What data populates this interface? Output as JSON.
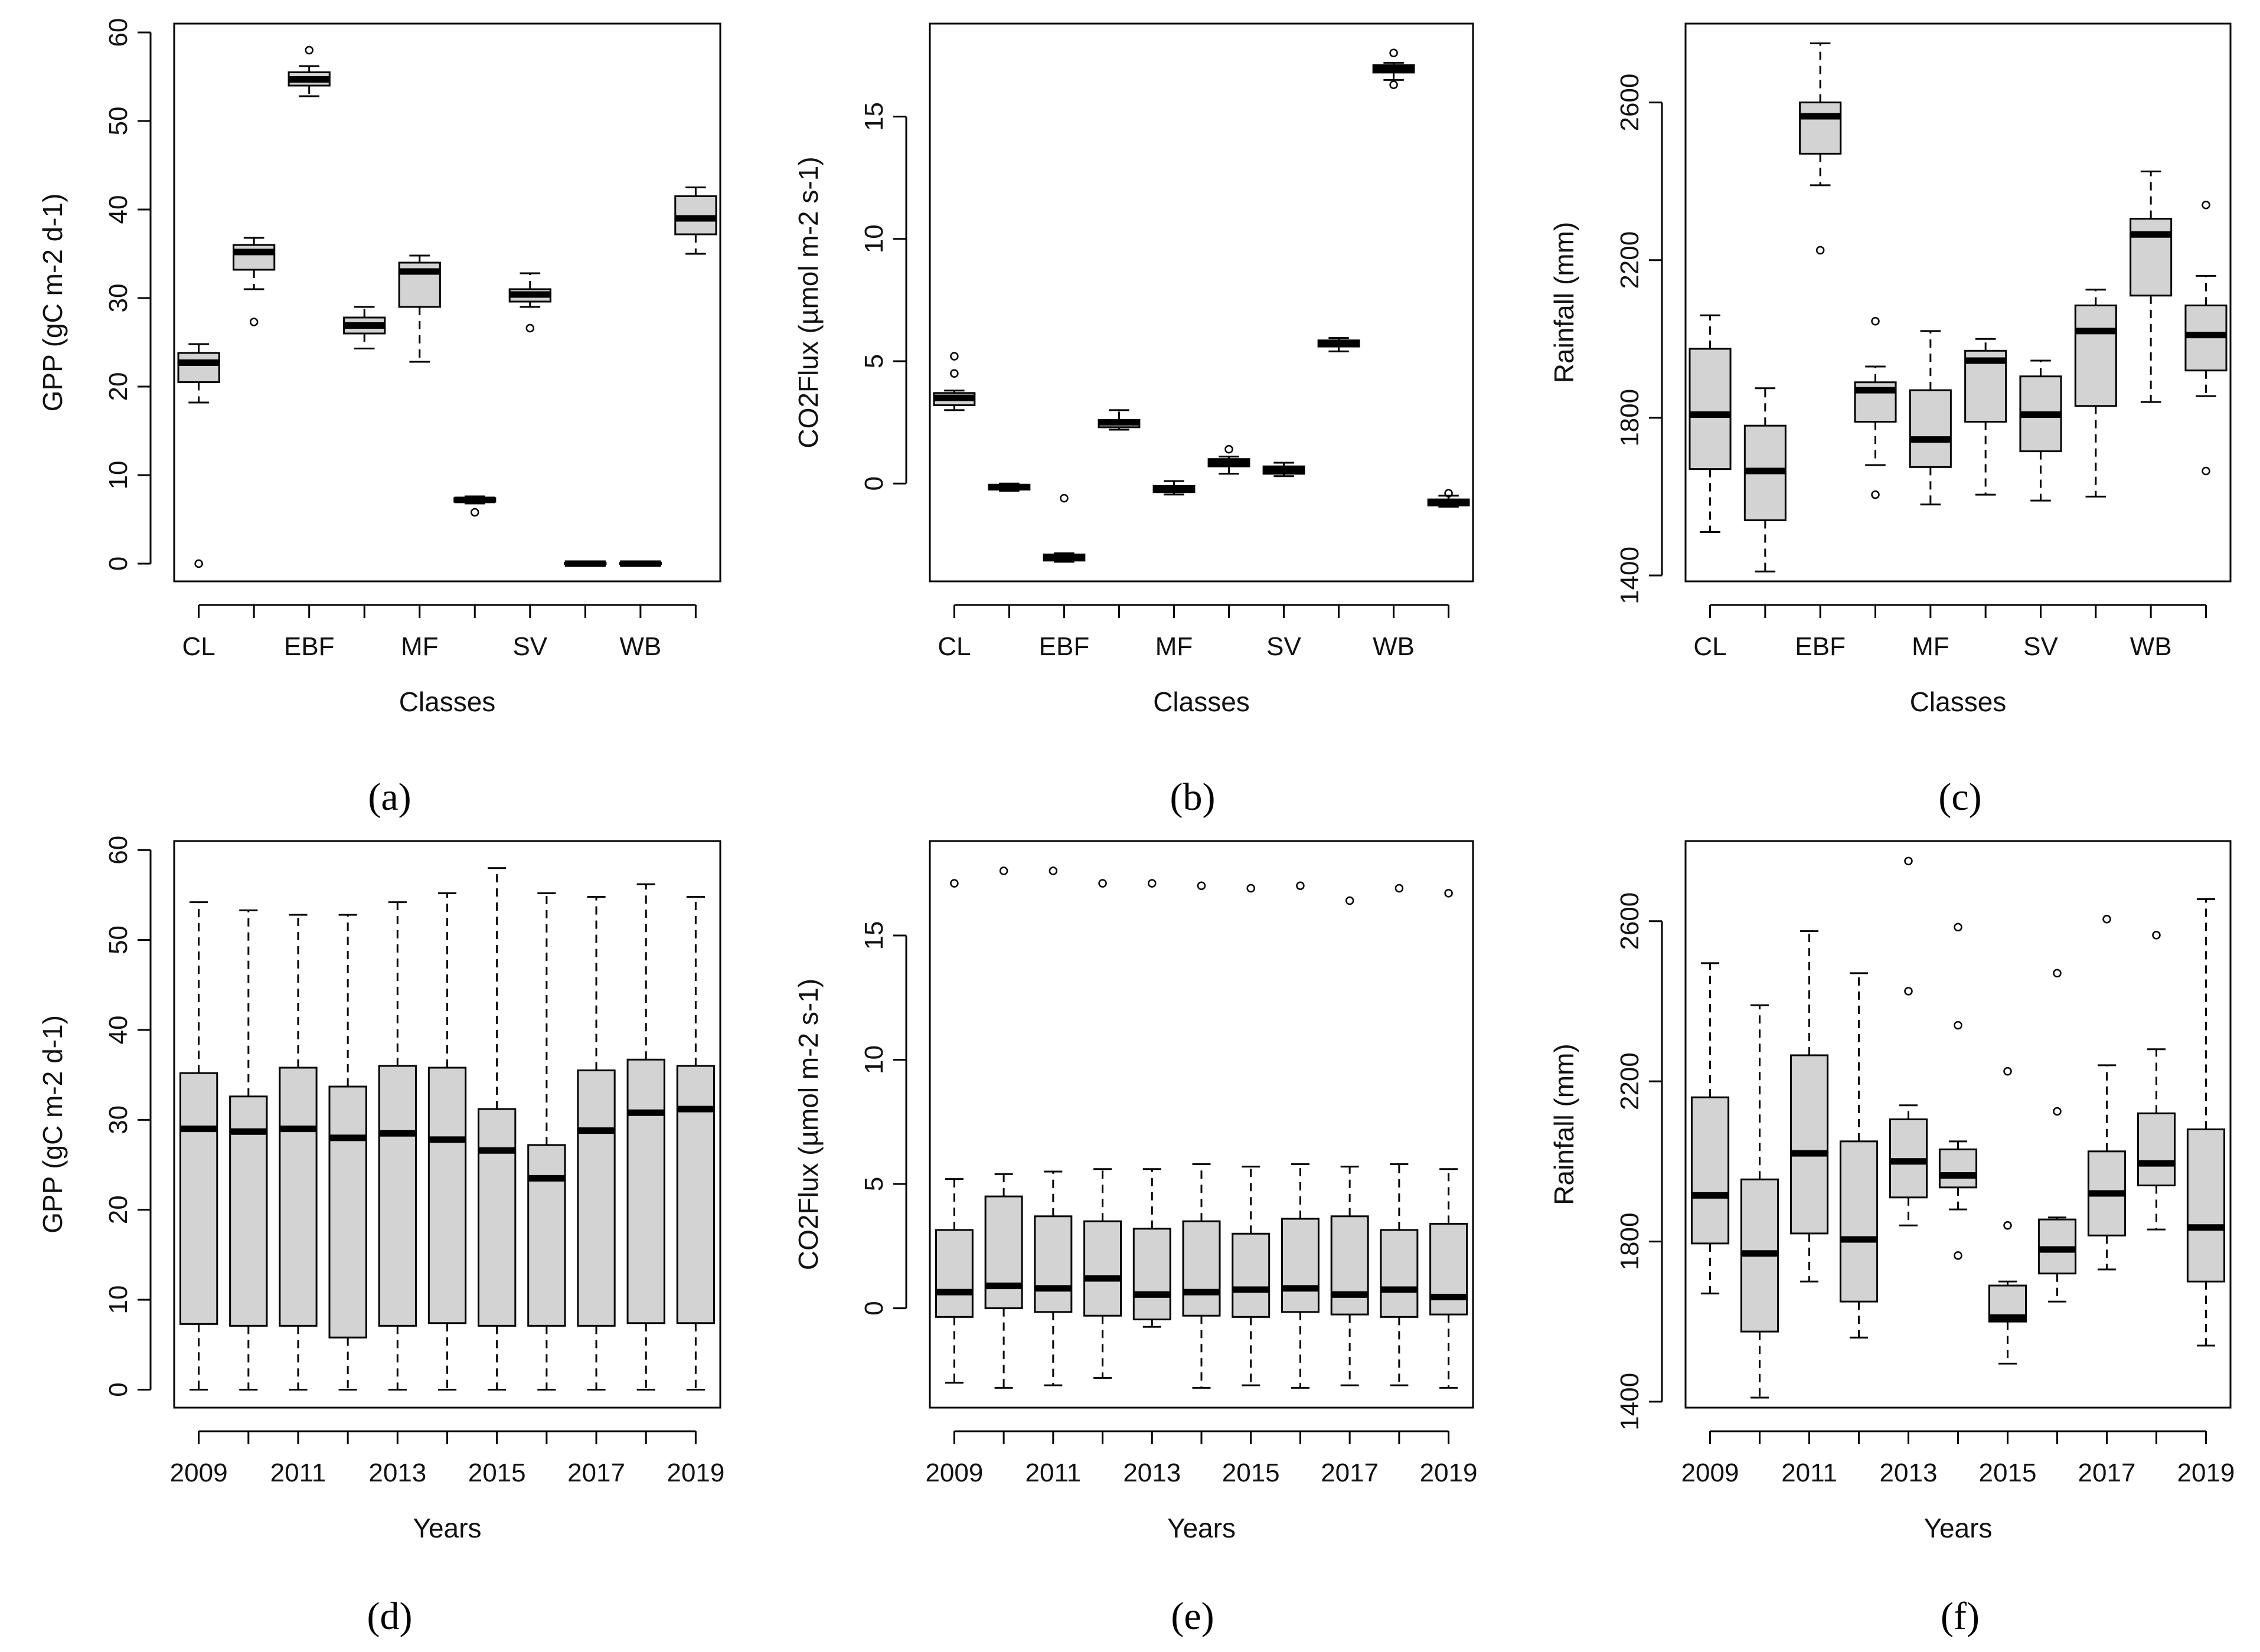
{
  "figure": {
    "panel_labels": [
      "(a)",
      "(b)",
      "(c)",
      "(d)",
      "(e)",
      "(f)"
    ],
    "box_fill": "#d3d3d3",
    "box_stroke": "#000000"
  },
  "chart_data": [
    {
      "id": "a",
      "type": "boxplot",
      "xlabel": "Classes",
      "ylabel": "GPP (gC m-2 d-1)",
      "ylim": [
        -2,
        61
      ],
      "yticks": [
        0,
        10,
        20,
        30,
        40,
        50,
        60
      ],
      "tick_labels": [
        "CL",
        "EBF",
        "MF",
        "SV",
        "WB"
      ],
      "tick_positions": [
        1,
        3,
        5,
        7,
        9
      ],
      "boxes": [
        {
          "q1": 20.5,
          "median": 22.7,
          "q3": 23.8,
          "wlo": 18.2,
          "whi": 24.8,
          "outliers": [
            0
          ]
        },
        {
          "q1": 33.2,
          "median": 35.2,
          "q3": 36.0,
          "wlo": 31.0,
          "whi": 36.8,
          "outliers": [
            27.3
          ]
        },
        {
          "q1": 54.0,
          "median": 54.7,
          "q3": 55.5,
          "wlo": 52.8,
          "whi": 56.2,
          "outliers": [
            58.0
          ]
        },
        {
          "q1": 26.0,
          "median": 26.9,
          "q3": 27.8,
          "wlo": 24.3,
          "whi": 29.0,
          "outliers": []
        },
        {
          "q1": 29.0,
          "median": 33.0,
          "q3": 34.0,
          "wlo": 22.8,
          "whi": 34.8,
          "outliers": []
        },
        {
          "q1": 7.0,
          "median": 7.2,
          "q3": 7.4,
          "wlo": 6.8,
          "whi": 7.6,
          "outliers": [
            5.8
          ]
        },
        {
          "q1": 29.6,
          "median": 30.4,
          "q3": 31.0,
          "wlo": 29.0,
          "whi": 32.8,
          "outliers": [
            26.6
          ]
        },
        {
          "q1": 0,
          "median": 0,
          "q3": 0.1,
          "wlo": 0,
          "whi": 0.1,
          "outliers": []
        },
        {
          "q1": 0,
          "median": 0,
          "q3": 0.1,
          "wlo": 0,
          "whi": 0.1,
          "outliers": []
        },
        {
          "q1": 37.2,
          "median": 39.0,
          "q3": 41.5,
          "wlo": 35.0,
          "whi": 42.5,
          "outliers": []
        }
      ]
    },
    {
      "id": "b",
      "type": "boxplot",
      "xlabel": "Classes",
      "ylabel": "CO2Flux (µmol m-2 s-1)",
      "ylim": [
        -4,
        18.8
      ],
      "yticks": [
        0,
        5,
        10,
        15
      ],
      "tick_labels": [
        "CL",
        "EBF",
        "MF",
        "SV",
        "WB"
      ],
      "tick_positions": [
        1,
        3,
        5,
        7,
        9
      ],
      "boxes": [
        {
          "q1": 3.2,
          "median": 3.5,
          "q3": 3.7,
          "wlo": 3.0,
          "whi": 3.8,
          "outliers": [
            4.5,
            5.2
          ]
        },
        {
          "q1": -0.25,
          "median": -0.15,
          "q3": -0.05,
          "wlo": -0.3,
          "whi": 0.0,
          "outliers": []
        },
        {
          "q1": -3.15,
          "median": -3.0,
          "q3": -2.9,
          "wlo": -3.2,
          "whi": -2.85,
          "outliers": [
            -0.6
          ]
        },
        {
          "q1": 2.3,
          "median": 2.5,
          "q3": 2.6,
          "wlo": 2.2,
          "whi": 3.0,
          "outliers": []
        },
        {
          "q1": -0.35,
          "median": -0.25,
          "q3": -0.1,
          "wlo": -0.45,
          "whi": 0.1,
          "outliers": []
        },
        {
          "q1": 0.7,
          "median": 0.85,
          "q3": 1.0,
          "wlo": 0.4,
          "whi": 1.1,
          "outliers": [
            1.4
          ]
        },
        {
          "q1": 0.4,
          "median": 0.55,
          "q3": 0.7,
          "wlo": 0.3,
          "whi": 0.85,
          "outliers": []
        },
        {
          "q1": 5.6,
          "median": 5.7,
          "q3": 5.85,
          "wlo": 5.4,
          "whi": 5.95,
          "outliers": []
        },
        {
          "q1": 16.8,
          "median": 16.95,
          "q3": 17.1,
          "wlo": 16.5,
          "whi": 17.2,
          "outliers": [
            17.6,
            16.3
          ]
        },
        {
          "q1": -0.9,
          "median": -0.8,
          "q3": -0.65,
          "wlo": -0.95,
          "whi": -0.5,
          "outliers": [
            -0.4
          ]
        }
      ]
    },
    {
      "id": "c",
      "type": "boxplot",
      "xlabel": "Classes",
      "ylabel": "Rainfall (mm)",
      "ylim": [
        1385,
        2800
      ],
      "yticks": [
        1400,
        1800,
        2200,
        2600
      ],
      "tick_labels": [
        "CL",
        "EBF",
        "MF",
        "SV",
        "WB"
      ],
      "tick_positions": [
        1,
        3,
        5,
        7,
        9
      ],
      "boxes": [
        {
          "q1": 1670,
          "median": 1808,
          "q3": 1975,
          "wlo": 1510,
          "whi": 2060,
          "outliers": []
        },
        {
          "q1": 1540,
          "median": 1665,
          "q3": 1780,
          "wlo": 1410,
          "whi": 1875,
          "outliers": []
        },
        {
          "q1": 2470,
          "median": 2565,
          "q3": 2600,
          "wlo": 2390,
          "whi": 2750,
          "outliers": [
            2225
          ]
        },
        {
          "q1": 1790,
          "median": 1870,
          "q3": 1890,
          "wlo": 1680,
          "whi": 1930,
          "outliers": [
            1605,
            2045
          ]
        },
        {
          "q1": 1675,
          "median": 1745,
          "q3": 1870,
          "wlo": 1580,
          "whi": 2020,
          "outliers": []
        },
        {
          "q1": 1790,
          "median": 1945,
          "q3": 1970,
          "wlo": 1605,
          "whi": 2000,
          "outliers": []
        },
        {
          "q1": 1715,
          "median": 1808,
          "q3": 1905,
          "wlo": 1590,
          "whi": 1945,
          "outliers": []
        },
        {
          "q1": 1830,
          "median": 2020,
          "q3": 2085,
          "wlo": 1600,
          "whi": 2125,
          "outliers": []
        },
        {
          "q1": 2110,
          "median": 2265,
          "q3": 2305,
          "wlo": 1840,
          "whi": 2425,
          "outliers": []
        },
        {
          "q1": 1920,
          "median": 2010,
          "q3": 2085,
          "wlo": 1855,
          "whi": 2160,
          "outliers": [
            1665,
            2340
          ]
        }
      ]
    },
    {
      "id": "d",
      "type": "boxplot",
      "xlabel": "Years",
      "ylabel": "GPP (gC m-2 d-1)",
      "ylim": [
        -2,
        61
      ],
      "yticks": [
        0,
        10,
        20,
        30,
        40,
        50,
        60
      ],
      "tick_labels": [
        "2009",
        "2011",
        "2013",
        "2015",
        "2017",
        "2019"
      ],
      "tick_positions": [
        1,
        3,
        5,
        7,
        9,
        11
      ],
      "boxes": [
        {
          "q1": 7.3,
          "median": 29.0,
          "q3": 35.2,
          "wlo": 0,
          "whi": 54.2,
          "outliers": []
        },
        {
          "q1": 7.1,
          "median": 28.7,
          "q3": 32.6,
          "wlo": 0,
          "whi": 53.3,
          "outliers": []
        },
        {
          "q1": 7.1,
          "median": 29.0,
          "q3": 35.8,
          "wlo": 0,
          "whi": 52.8,
          "outliers": []
        },
        {
          "q1": 5.8,
          "median": 28.0,
          "q3": 33.7,
          "wlo": 0,
          "whi": 52.8,
          "outliers": []
        },
        {
          "q1": 7.1,
          "median": 28.5,
          "q3": 36.0,
          "wlo": 0,
          "whi": 54.2,
          "outliers": []
        },
        {
          "q1": 7.4,
          "median": 27.8,
          "q3": 35.8,
          "wlo": 0,
          "whi": 55.2,
          "outliers": []
        },
        {
          "q1": 7.1,
          "median": 26.6,
          "q3": 31.2,
          "wlo": 0,
          "whi": 58.0,
          "outliers": []
        },
        {
          "q1": 7.1,
          "median": 23.5,
          "q3": 27.2,
          "wlo": 0,
          "whi": 55.2,
          "outliers": []
        },
        {
          "q1": 7.1,
          "median": 28.8,
          "q3": 35.5,
          "wlo": 0,
          "whi": 54.8,
          "outliers": []
        },
        {
          "q1": 7.4,
          "median": 30.8,
          "q3": 36.7,
          "wlo": 0,
          "whi": 56.2,
          "outliers": []
        },
        {
          "q1": 7.4,
          "median": 31.2,
          "q3": 36.0,
          "wlo": 0,
          "whi": 54.8,
          "outliers": []
        }
      ]
    },
    {
      "id": "e",
      "type": "boxplot",
      "xlabel": "Years",
      "ylabel": "CO2Flux (µmol m-2 s-1)",
      "ylim": [
        -4,
        18.8
      ],
      "yticks": [
        0,
        5,
        10,
        15
      ],
      "tick_labels": [
        "2009",
        "2011",
        "2013",
        "2015",
        "2017",
        "2019"
      ],
      "tick_positions": [
        1,
        3,
        5,
        7,
        9,
        11
      ],
      "boxes": [
        {
          "q1": -0.35,
          "median": 0.65,
          "q3": 3.15,
          "wlo": -3.0,
          "whi": 5.2,
          "outliers": [
            17.1
          ]
        },
        {
          "q1": 0.0,
          "median": 0.9,
          "q3": 4.5,
          "wlo": -3.2,
          "whi": 5.4,
          "outliers": [
            17.6
          ]
        },
        {
          "q1": -0.15,
          "median": 0.8,
          "q3": 3.7,
          "wlo": -3.1,
          "whi": 5.5,
          "outliers": [
            17.6
          ]
        },
        {
          "q1": -0.3,
          "median": 1.2,
          "q3": 3.5,
          "wlo": -2.8,
          "whi": 5.6,
          "outliers": [
            17.1
          ]
        },
        {
          "q1": -0.45,
          "median": 0.55,
          "q3": 3.2,
          "wlo": -0.75,
          "whi": 5.6,
          "outliers": [
            17.1
          ]
        },
        {
          "q1": -0.3,
          "median": 0.65,
          "q3": 3.5,
          "wlo": -3.2,
          "whi": 5.8,
          "outliers": [
            17.0
          ]
        },
        {
          "q1": -0.35,
          "median": 0.75,
          "q3": 3.0,
          "wlo": -3.1,
          "whi": 5.7,
          "outliers": [
            16.9
          ]
        },
        {
          "q1": -0.15,
          "median": 0.8,
          "q3": 3.6,
          "wlo": -3.2,
          "whi": 5.8,
          "outliers": [
            17.0
          ]
        },
        {
          "q1": -0.25,
          "median": 0.55,
          "q3": 3.7,
          "wlo": -3.1,
          "whi": 5.7,
          "outliers": [
            16.4
          ]
        },
        {
          "q1": -0.35,
          "median": 0.75,
          "q3": 3.15,
          "wlo": -3.1,
          "whi": 5.8,
          "outliers": [
            16.9
          ]
        },
        {
          "q1": -0.25,
          "median": 0.45,
          "q3": 3.4,
          "wlo": -3.2,
          "whi": 5.6,
          "outliers": [
            16.7
          ]
        }
      ]
    },
    {
      "id": "f",
      "type": "boxplot",
      "xlabel": "Years",
      "ylabel": "Rainfall (mm)",
      "ylim": [
        1385,
        2800
      ],
      "yticks": [
        1400,
        1800,
        2200,
        2600
      ],
      "tick_labels": [
        "2009",
        "2011",
        "2013",
        "2015",
        "2017",
        "2019"
      ],
      "tick_positions": [
        1,
        3,
        5,
        7,
        9,
        11
      ],
      "boxes": [
        {
          "q1": 1795,
          "median": 1915,
          "q3": 2160,
          "wlo": 1670,
          "whi": 2495,
          "outliers": []
        },
        {
          "q1": 1575,
          "median": 1770,
          "q3": 1955,
          "wlo": 1410,
          "whi": 2390,
          "outliers": []
        },
        {
          "q1": 1820,
          "median": 2020,
          "q3": 2265,
          "wlo": 1700,
          "whi": 2575,
          "outliers": []
        },
        {
          "q1": 1650,
          "median": 1805,
          "q3": 2050,
          "wlo": 1560,
          "whi": 2470,
          "outliers": []
        },
        {
          "q1": 1910,
          "median": 2000,
          "q3": 2105,
          "wlo": 1840,
          "whi": 2140,
          "outliers": [
            2750,
            2425
          ]
        },
        {
          "q1": 1935,
          "median": 1965,
          "q3": 2030,
          "wlo": 1880,
          "whi": 2050,
          "outliers": [
            2585,
            2340,
            1765
          ]
        },
        {
          "q1": 1600,
          "median": 1610,
          "q3": 1690,
          "wlo": 1495,
          "whi": 1700,
          "outliers": [
            2225,
            1840
          ]
        },
        {
          "q1": 1720,
          "median": 1780,
          "q3": 1855,
          "wlo": 1650,
          "whi": 1860,
          "outliers": [
            2470,
            2125
          ]
        },
        {
          "q1": 1815,
          "median": 1920,
          "q3": 2025,
          "wlo": 1730,
          "whi": 2240,
          "outliers": [
            2605
          ]
        },
        {
          "q1": 1940,
          "median": 1995,
          "q3": 2120,
          "wlo": 1830,
          "whi": 2280,
          "outliers": [
            2565
          ]
        },
        {
          "q1": 1700,
          "median": 1835,
          "q3": 2080,
          "wlo": 1540,
          "whi": 2655,
          "outliers": []
        }
      ]
    }
  ]
}
